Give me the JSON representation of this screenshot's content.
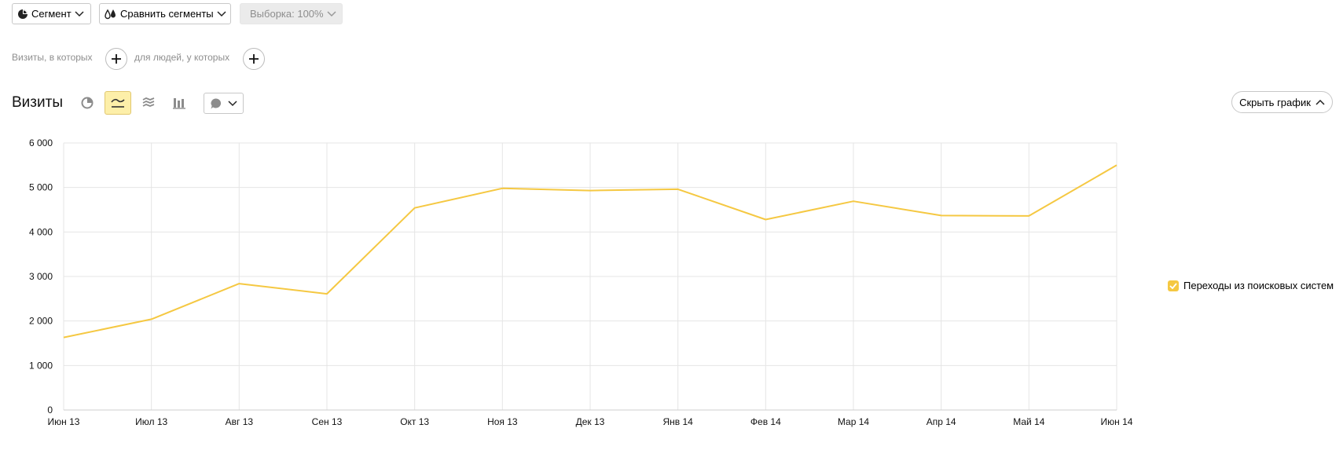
{
  "toolbar": {
    "segment_label": "Сегмент",
    "compare_label": "Сравнить сегменты",
    "sample_label": "Выборка: 100%"
  },
  "filters": {
    "visits_label": "Визиты, в которых",
    "people_label": "для людей, у которых"
  },
  "report": {
    "title": "Визиты",
    "hide_chart_label": "Скрыть график",
    "view_modes": [
      "pie-chart-icon",
      "line-chart-icon",
      "area-chart-icon",
      "column-chart-icon"
    ],
    "active_view": "line-chart-icon"
  },
  "colors": {
    "series": "#f5c842",
    "accent_bg": "#fdefa9",
    "grid": "#e5e5e5"
  },
  "chart_data": {
    "type": "line",
    "title": "",
    "xlabel": "",
    "ylabel": "",
    "ylim": [
      0,
      6000
    ],
    "yticks": [
      0,
      1000,
      2000,
      3000,
      4000,
      5000,
      6000
    ],
    "ytick_labels": [
      "0",
      "1 000",
      "2 000",
      "3 000",
      "4 000",
      "5 000",
      "6 000"
    ],
    "categories": [
      "Июн 13",
      "Июл 13",
      "Авг 13",
      "Сен 13",
      "Окт 13",
      "Ноя 13",
      "Дек 13",
      "Янв 14",
      "Фев 14",
      "Мар 14",
      "Апр 14",
      "Май 14",
      "Июн 14"
    ],
    "series": [
      {
        "name": "Переходы из поисковых систем",
        "color": "#f5c842",
        "values": [
          1630,
          2040,
          2840,
          2610,
          4540,
          4980,
          4930,
          4960,
          4280,
          4690,
          4370,
          4360,
          5500
        ]
      }
    ],
    "grid": true,
    "legend": "right"
  }
}
